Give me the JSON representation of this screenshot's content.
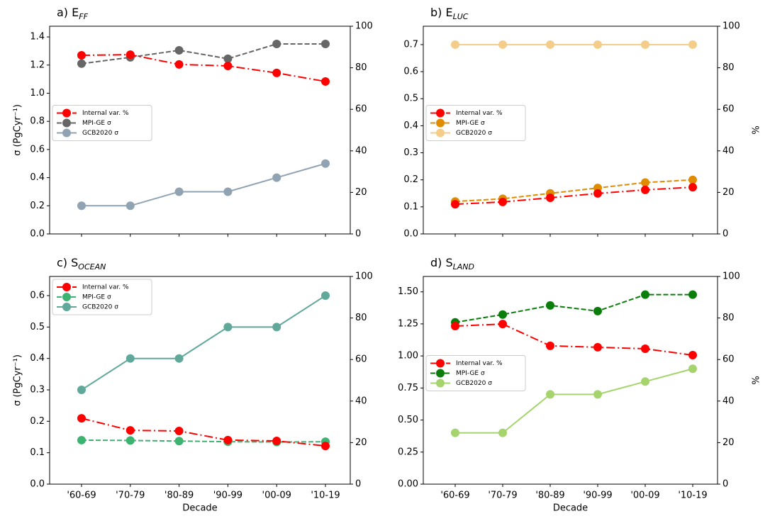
{
  "chart_data": [
    {
      "type": "line",
      "title": "a) E",
      "title_subscript": "FF",
      "ylabel": "σ (PgCyr⁻¹)",
      "categories": [
        null,
        null,
        null,
        null,
        null,
        null
      ],
      "ylim": [
        0,
        1.476
      ],
      "yticks": [
        {
          "value": 0,
          "label": "0.0"
        },
        0.2,
        0.4,
        0.6,
        0.8,
        {
          "value": 1,
          "label": "1.0"
        },
        1.2,
        1.4
      ],
      "y2lim": [
        0,
        100
      ],
      "y2ticks": [
        0,
        20,
        40,
        60,
        80,
        100
      ],
      "legend": "center left",
      "series": [
        {
          "name": "Internal var. %",
          "color": "#ff0000",
          "linestyle": "dashdot",
          "axis": "y2",
          "values": [
            86.0,
            86.3,
            81.6,
            80.9,
            77.5,
            73.4
          ]
        },
        {
          "name": "MPI-GE σ",
          "color": "#666666",
          "linestyle": "dashed",
          "values": [
            1.21,
            1.255,
            1.305,
            1.245,
            1.35,
            1.35
          ]
        },
        {
          "name": "GCB2020 σ",
          "color": "#8fa3b3",
          "linestyle": "solid",
          "values": [
            0.2,
            0.2,
            0.3,
            0.3,
            0.4,
            0.5
          ]
        }
      ]
    },
    {
      "type": "line",
      "title": "b) E",
      "title_subscript": "LUC",
      "y2label": "%",
      "categories": [
        null,
        null,
        null,
        null,
        null,
        null
      ],
      "ylim": [
        0,
        0.768
      ],
      "yticks": [
        {
          "value": 0,
          "label": "0.0"
        },
        0.1,
        0.2,
        0.3,
        0.4,
        0.5,
        0.6,
        0.7
      ],
      "y2lim": [
        0,
        100
      ],
      "y2ticks": [
        0,
        20,
        40,
        60,
        80,
        100
      ],
      "legend": "center left",
      "series": [
        {
          "name": "Internal var. %",
          "color": "#ff0000",
          "linestyle": "dashdot",
          "axis": "y2",
          "values": [
            14.3,
            15.4,
            17.4,
            19.5,
            21.2,
            22.5
          ]
        },
        {
          "name": "MPI-GE σ",
          "color": "#e08c00",
          "linestyle": "dashed",
          "values": [
            0.12,
            0.13,
            0.15,
            0.17,
            0.19,
            0.2
          ]
        },
        {
          "name": "GCB2020 σ",
          "color": "#f5cd8a",
          "linestyle": "solid",
          "values": [
            0.7,
            0.7,
            0.7,
            0.7,
            0.7,
            0.7
          ]
        }
      ]
    },
    {
      "type": "line",
      "title": "c) S",
      "title_subscript": "OCEAN",
      "ylabel": "σ (PgCyr⁻¹)",
      "xlabel": "Decade",
      "categories": [
        "'60-69",
        "'70-79",
        "'80-89",
        "'90-99",
        "'00-09",
        "'10-19"
      ],
      "ylim": [
        0,
        0.661
      ],
      "yticks": [
        {
          "value": 0,
          "label": "0.0"
        },
        0.1,
        0.2,
        0.3,
        0.4,
        0.5,
        0.6
      ],
      "y2lim": [
        0,
        100
      ],
      "y2ticks": [
        0,
        20,
        40,
        60,
        80,
        100
      ],
      "legend": "upper left",
      "series": [
        {
          "name": "Internal var. %",
          "color": "#ff0000",
          "linestyle": "dashdot",
          "axis": "y2",
          "values": [
            31.7,
            25.9,
            25.6,
            21.2,
            20.8,
            18.4
          ]
        },
        {
          "name": "MPI-GE σ",
          "color": "#3cb371",
          "linestyle": "dashed",
          "values": [
            0.14,
            0.139,
            0.137,
            0.135,
            0.134,
            0.135
          ]
        },
        {
          "name": "GCB2020 σ",
          "color": "#5fa89a",
          "linestyle": "solid",
          "values": [
            0.3,
            0.4,
            0.4,
            0.5,
            0.5,
            0.6
          ]
        }
      ]
    },
    {
      "type": "line",
      "title": "d) S",
      "title_subscript": "LAND",
      "y2label": "%",
      "xlabel": "Decade",
      "categories": [
        "'60-69",
        "'70-79",
        "'80-89",
        "'90-99",
        "'00-09",
        "'10-19"
      ],
      "ylim": [
        0,
        1.62
      ],
      "yticks": [
        {
          "value": 0,
          "label": "0.00"
        },
        {
          "value": 0.25,
          "label": "0.25"
        },
        {
          "value": 0.5,
          "label": "0.50"
        },
        {
          "value": 0.75,
          "label": "0.75"
        },
        {
          "value": 1,
          "label": "1.00"
        },
        {
          "value": 1.25,
          "label": "1.25"
        },
        {
          "value": 1.5,
          "label": "1.50"
        }
      ],
      "y2lim": [
        0,
        100
      ],
      "y2ticks": [
        0,
        20,
        40,
        60,
        80,
        100
      ],
      "legend": "center left",
      "series": [
        {
          "name": "Internal var. %",
          "color": "#ff0000",
          "linestyle": "dashdot",
          "axis": "y2",
          "values": [
            76.1,
            77.1,
            66.6,
            65.9,
            65.2,
            62.1
          ]
        },
        {
          "name": "MPI-GE σ",
          "color": "#0a7d0a",
          "linestyle": "dashed",
          "values": [
            1.262,
            1.323,
            1.394,
            1.35,
            1.478,
            1.478
          ]
        },
        {
          "name": "GCB2020 σ",
          "color": "#a6d46c",
          "linestyle": "solid",
          "values": [
            0.4,
            0.4,
            0.7,
            0.7,
            0.8,
            0.9
          ]
        }
      ]
    }
  ]
}
